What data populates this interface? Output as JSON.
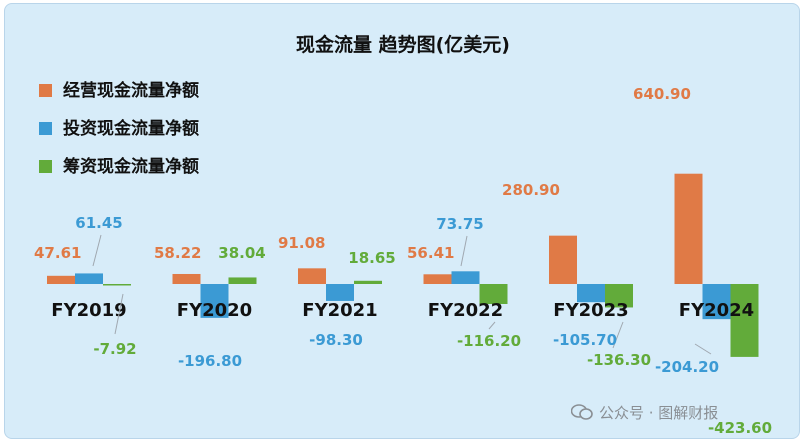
{
  "chart_data": {
    "type": "bar",
    "title": "现金流量 趋势图(亿美元)",
    "categories": [
      "FY2019",
      "FY2020",
      "FY2021",
      "FY2022",
      "FY2023",
      "FY2024"
    ],
    "series": [
      {
        "name": "经营现金流量净额",
        "color": "#e07a46",
        "values": [
          47.61,
          58.22,
          91.08,
          56.41,
          280.9,
          640.9
        ]
      },
      {
        "name": "投资现金流量净额",
        "color": "#3b9ad4",
        "values": [
          61.45,
          -196.8,
          -98.3,
          73.75,
          -105.7,
          -204.2
        ]
      },
      {
        "name": "筹资现金流量净额",
        "color": "#62ab3a",
        "values": [
          -7.92,
          38.04,
          18.65,
          -116.2,
          -136.3,
          -423.6
        ]
      }
    ],
    "data_labels": [
      [
        "47.61",
        "58.22",
        "91.08",
        "56.41",
        "280.90",
        "640.90"
      ],
      [
        "61.45",
        "-196.80",
        "-98.30",
        "73.75",
        "-105.70",
        "-204.20"
      ],
      [
        "-7.92",
        "38.04",
        "18.65",
        "-116.20",
        "-136.30",
        "-423.60"
      ]
    ],
    "legend_position": "top-left",
    "grid": false
  },
  "watermark": {
    "text": "公众号 · 图解财报",
    "icon": "wechat-icon"
  }
}
